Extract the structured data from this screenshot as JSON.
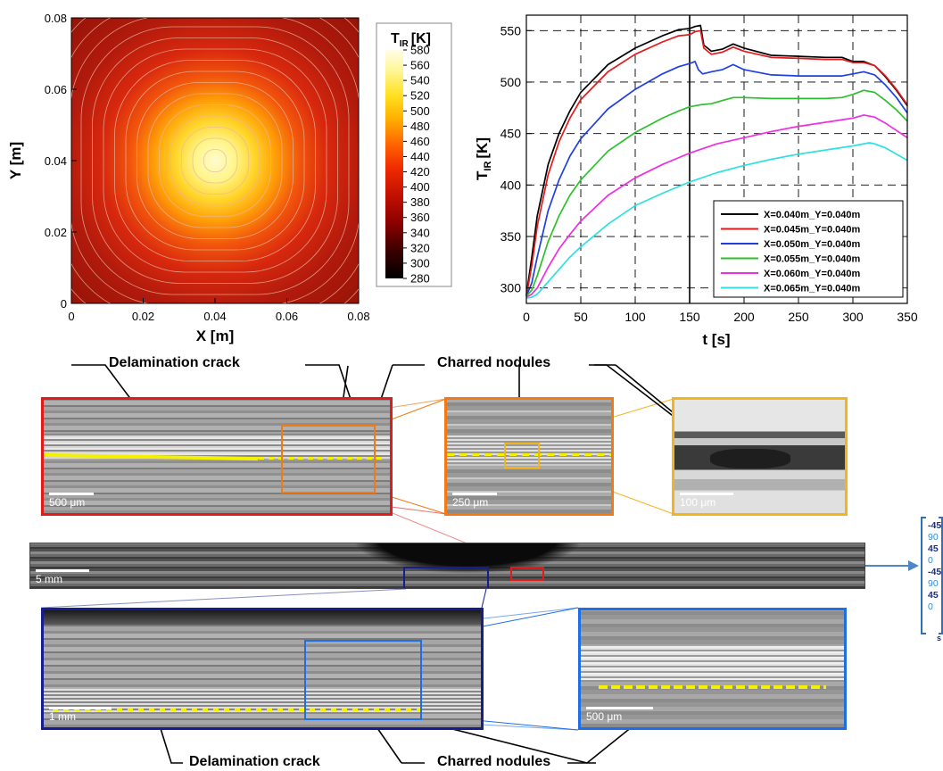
{
  "chart_data": [
    {
      "type": "heatmap",
      "xlabel": "X [m]",
      "ylabel": "Y [m]",
      "xlim": [
        0,
        0.08
      ],
      "ylim": [
        0,
        0.08
      ],
      "x_ticks": [
        "0",
        "0.02",
        "0.04",
        "0.06",
        "0.08"
      ],
      "y_ticks": [
        "0",
        "0.02",
        "0.04",
        "0.06",
        "0.08"
      ],
      "center": [
        0.04,
        0.04
      ],
      "value_range": [
        280,
        580
      ],
      "colorbar": {
        "title": "T",
        "title_sub": "IR",
        "title_unit": "[K]",
        "ticks": [
          "580",
          "560",
          "540",
          "520",
          "500",
          "480",
          "460",
          "440",
          "420",
          "400",
          "380",
          "360",
          "340",
          "320",
          "300",
          "280"
        ]
      }
    },
    {
      "type": "line",
      "xlabel": "t [s]",
      "ylabel_main": "T",
      "ylabel_sub": "IR",
      "ylabel_unit": "[K]",
      "xlim": [
        0,
        350
      ],
      "ylim": [
        285,
        565
      ],
      "x_ticks": [
        0,
        50,
        100,
        150,
        200,
        250,
        300,
        350
      ],
      "y_ticks": [
        300,
        350,
        400,
        450,
        500,
        550
      ],
      "grid": "dashed",
      "vline_at": 150,
      "legend_position": "bottom-right",
      "series": [
        {
          "name": "X=0.040m_Y=0.040m",
          "color": "#000000",
          "points": [
            [
              0,
              293
            ],
            [
              5,
              330
            ],
            [
              10,
              370
            ],
            [
              20,
              420
            ],
            [
              30,
              450
            ],
            [
              40,
              472
            ],
            [
              50,
              490
            ],
            [
              75,
              517
            ],
            [
              100,
              533
            ],
            [
              125,
              545
            ],
            [
              140,
              551
            ],
            [
              150,
              552
            ],
            [
              155,
              554
            ],
            [
              160,
              555
            ],
            [
              163,
              536
            ],
            [
              170,
              530
            ],
            [
              180,
              532
            ],
            [
              190,
              537
            ],
            [
              200,
              533
            ],
            [
              225,
              526
            ],
            [
              250,
              525
            ],
            [
              275,
              524
            ],
            [
              290,
              524
            ],
            [
              300,
              520
            ],
            [
              310,
              520
            ],
            [
              320,
              516
            ],
            [
              330,
              505
            ],
            [
              340,
              492
            ],
            [
              350,
              477
            ]
          ]
        },
        {
          "name": "X=0.045m_Y=0.040m",
          "color": "#e41a1c",
          "points": [
            [
              0,
              292
            ],
            [
              5,
              322
            ],
            [
              10,
              360
            ],
            [
              20,
              410
            ],
            [
              30,
              442
            ],
            [
              40,
              465
            ],
            [
              50,
              483
            ],
            [
              75,
              510
            ],
            [
              100,
              527
            ],
            [
              125,
              539
            ],
            [
              140,
              545
            ],
            [
              150,
              546
            ],
            [
              155,
              549
            ],
            [
              160,
              550
            ],
            [
              163,
              533
            ],
            [
              170,
              527
            ],
            [
              180,
              529
            ],
            [
              190,
              534
            ],
            [
              200,
              530
            ],
            [
              225,
              524
            ],
            [
              250,
              523
            ],
            [
              275,
              522
            ],
            [
              290,
              522
            ],
            [
              300,
              519
            ],
            [
              310,
              519
            ],
            [
              320,
              516
            ],
            [
              330,
              506
            ],
            [
              340,
              493
            ],
            [
              350,
              478
            ]
          ]
        },
        {
          "name": "X=0.050m_Y=0.040m",
          "color": "#1f3fe0",
          "points": [
            [
              0,
              292
            ],
            [
              5,
              305
            ],
            [
              10,
              330
            ],
            [
              20,
              375
            ],
            [
              30,
              405
            ],
            [
              40,
              428
            ],
            [
              50,
              445
            ],
            [
              75,
              474
            ],
            [
              100,
              493
            ],
            [
              125,
              508
            ],
            [
              140,
              515
            ],
            [
              150,
              518
            ],
            [
              155,
              520
            ],
            [
              158,
              512
            ],
            [
              162,
              508
            ],
            [
              170,
              510
            ],
            [
              180,
              512
            ],
            [
              190,
              517
            ],
            [
              200,
              512
            ],
            [
              225,
              507
            ],
            [
              250,
              506
            ],
            [
              275,
              506
            ],
            [
              290,
              506
            ],
            [
              300,
              508
            ],
            [
              310,
              510
            ],
            [
              320,
              507
            ],
            [
              330,
              497
            ],
            [
              340,
              485
            ],
            [
              350,
              470
            ]
          ]
        },
        {
          "name": "X=0.055m_Y=0.040m",
          "color": "#2cc12c",
          "points": [
            [
              0,
              292
            ],
            [
              5,
              298
            ],
            [
              10,
              312
            ],
            [
              20,
              345
            ],
            [
              30,
              370
            ],
            [
              40,
              390
            ],
            [
              50,
              405
            ],
            [
              75,
              433
            ],
            [
              100,
              451
            ],
            [
              125,
              465
            ],
            [
              140,
              472
            ],
            [
              150,
              476
            ],
            [
              160,
              478
            ],
            [
              170,
              479
            ],
            [
              180,
              482
            ],
            [
              190,
              485
            ],
            [
              200,
              485
            ],
            [
              225,
              484
            ],
            [
              250,
              484
            ],
            [
              275,
              484
            ],
            [
              290,
              485
            ],
            [
              300,
              488
            ],
            [
              310,
              492
            ],
            [
              320,
              490
            ],
            [
              330,
              482
            ],
            [
              340,
              473
            ],
            [
              350,
              462
            ]
          ]
        },
        {
          "name": "X=0.060m_Y=0.040m",
          "color": "#ee2ee0",
          "points": [
            [
              0,
              291
            ],
            [
              5,
              294
            ],
            [
              10,
              300
            ],
            [
              20,
              320
            ],
            [
              30,
              338
            ],
            [
              40,
              352
            ],
            [
              50,
              365
            ],
            [
              75,
              390
            ],
            [
              100,
              407
            ],
            [
              125,
              420
            ],
            [
              150,
              431
            ],
            [
              175,
              440
            ],
            [
              200,
              446
            ],
            [
              225,
              452
            ],
            [
              250,
              457
            ],
            [
              275,
              461
            ],
            [
              300,
              465
            ],
            [
              310,
              468
            ],
            [
              320,
              466
            ],
            [
              330,
              460
            ],
            [
              340,
              453
            ],
            [
              350,
              446
            ]
          ]
        },
        {
          "name": "X=0.065m_Y=0.040m",
          "color": "#2ee0e0",
          "points": [
            [
              0,
              290
            ],
            [
              5,
              291
            ],
            [
              10,
              294
            ],
            [
              20,
              306
            ],
            [
              30,
              318
            ],
            [
              40,
              330
            ],
            [
              50,
              340
            ],
            [
              75,
              362
            ],
            [
              100,
              380
            ],
            [
              125,
              392
            ],
            [
              150,
              403
            ],
            [
              175,
              412
            ],
            [
              200,
              419
            ],
            [
              225,
              425
            ],
            [
              250,
              430
            ],
            [
              275,
              434
            ],
            [
              300,
              438
            ],
            [
              315,
              441
            ],
            [
              320,
              440
            ],
            [
              330,
              436
            ],
            [
              340,
              430
            ],
            [
              350,
              424
            ]
          ]
        }
      ]
    }
  ],
  "micrographs": {
    "label_delam_top": "Delamination crack",
    "label_nodules_top": "Charred nodules",
    "label_delam_bottom": "Delamination crack",
    "label_nodules_bottom": "Charred nodules",
    "scale_500um_top": "500 μm",
    "scale_250um": "250 μm",
    "scale_100um": "100 μm",
    "scale_5mm": "5 mm",
    "scale_1mm": "1 mm",
    "scale_500um_bottom": "500 μm",
    "colors": {
      "red": "#e11b1b",
      "orange": "#f07a18",
      "gold": "#f2b51a",
      "navy": "#141e8c",
      "blue": "#1e6ee6",
      "crack": "#f4f000"
    }
  },
  "layup": {
    "plies": [
      "-45",
      "90",
      "45",
      "0",
      "-45",
      "90",
      "45",
      "0"
    ],
    "suffix": "s",
    "dark_color": "#1a2f86",
    "light_color": "#2f8fd8"
  }
}
